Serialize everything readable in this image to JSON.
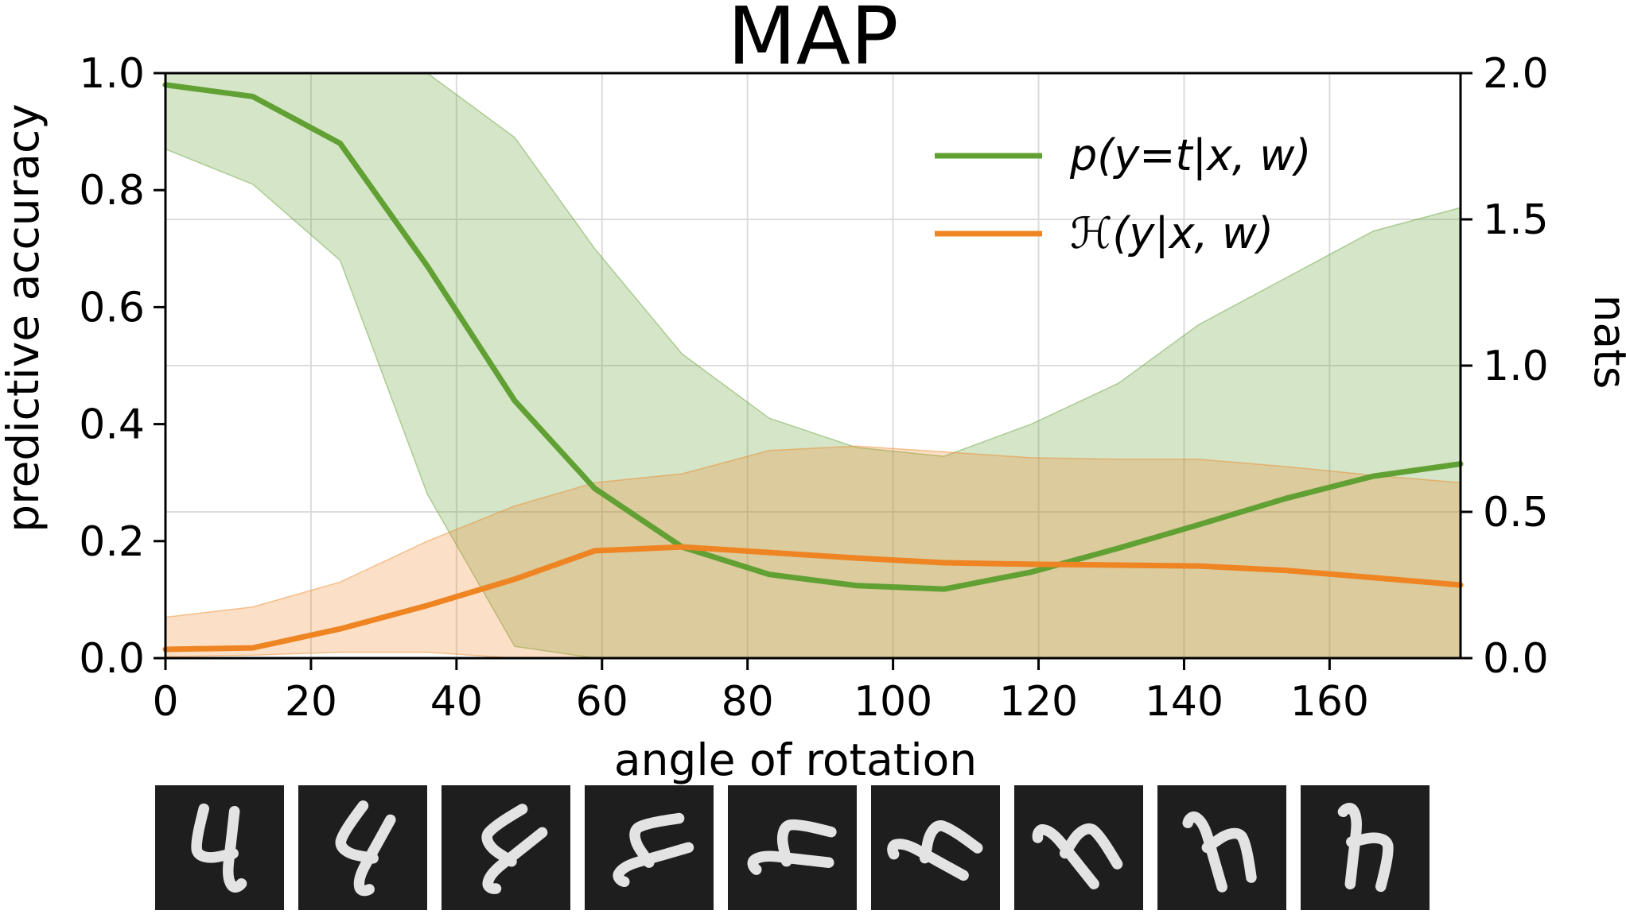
{
  "title": "MAP",
  "axes": {
    "x_label": "angle of rotation",
    "y_label_left": "predictive accuracy",
    "y_label_right": "nats"
  },
  "chart_data": {
    "type": "line",
    "title": "MAP",
    "xlabel": "angle of rotation",
    "ylabel_left": "predictive accuracy",
    "ylabel_right": "nats",
    "xlim": [
      0,
      178
    ],
    "ylim_left": [
      0.0,
      1.0
    ],
    "ylim_right": [
      0.0,
      2.0
    ],
    "grid": "on",
    "xticks": [
      0,
      20,
      40,
      60,
      80,
      100,
      120,
      140,
      160
    ],
    "yticks_left": [
      "0.0",
      "0.2",
      "0.4",
      "0.6",
      "0.8",
      "1.0"
    ],
    "yticks_right": [
      "0.0",
      "0.5",
      "1.0",
      "1.5",
      "2.0"
    ],
    "grid_y_nats": [
      0.5,
      1.0,
      1.5
    ],
    "x": [
      0,
      12,
      24,
      36,
      48,
      59,
      71,
      83,
      95,
      107,
      119,
      131,
      142,
      154,
      166,
      178
    ],
    "series": [
      {
        "name": "p(y=t|x,  w)",
        "axis": "left",
        "color": "#61a033",
        "band_alpha": 0.27,
        "values": [
          0.98,
          0.96,
          0.88,
          0.67,
          0.44,
          0.29,
          0.19,
          0.143,
          0.124,
          0.118,
          0.147,
          0.188,
          0.228,
          0.273,
          0.311,
          0.332
        ],
        "band_hi": [
          1.0,
          1.0,
          1.0,
          1.0,
          0.89,
          0.7,
          0.52,
          0.41,
          0.36,
          0.345,
          0.4,
          0.47,
          0.57,
          0.65,
          0.73,
          0.77
        ],
        "band_lo": [
          0.87,
          0.81,
          0.68,
          0.28,
          0.02,
          0.0,
          0.0,
          0.0,
          0.0,
          0.0,
          0.0,
          0.0,
          0.0,
          0.0,
          0.0,
          0.0
        ]
      },
      {
        "name": "ℋ(y|x, w)",
        "axis": "right",
        "color": "#ee8422",
        "band_alpha": 0.26,
        "values": [
          0.03,
          0.035,
          0.1,
          0.18,
          0.27,
          0.367,
          0.38,
          0.361,
          0.342,
          0.326,
          0.321,
          0.318,
          0.315,
          0.3,
          0.275,
          0.25
        ],
        "band_hi": [
          0.14,
          0.175,
          0.26,
          0.4,
          0.52,
          0.6,
          0.63,
          0.71,
          0.725,
          0.705,
          0.685,
          0.68,
          0.68,
          0.655,
          0.625,
          0.6
        ],
        "band_lo": [
          0.005,
          0.01,
          0.02,
          0.02,
          0.0,
          0.0,
          0.0,
          0.0,
          0.0,
          0.0,
          0.0,
          0.0,
          0.0,
          0.0,
          0.0,
          0.0
        ]
      }
    ],
    "legend": {
      "position": "upper right",
      "entries": [
        "p(y=t|x,  w)",
        "ℋ(y|x, w)"
      ]
    }
  },
  "digits": {
    "digit": "4",
    "count": 9,
    "rotation_step_deg": 22.5,
    "angles": [
      0,
      22.5,
      45,
      67.5,
      90,
      112.5,
      135,
      157.5,
      180
    ],
    "bg_color": "#1e1e1e",
    "ink_color": "#f2f2f2"
  },
  "colors": {
    "accuracy_line": "#61a033",
    "entropy_line": "#ee8422",
    "grid": "#dcdcdc",
    "spine": "#000000",
    "background": "#ffffff"
  }
}
